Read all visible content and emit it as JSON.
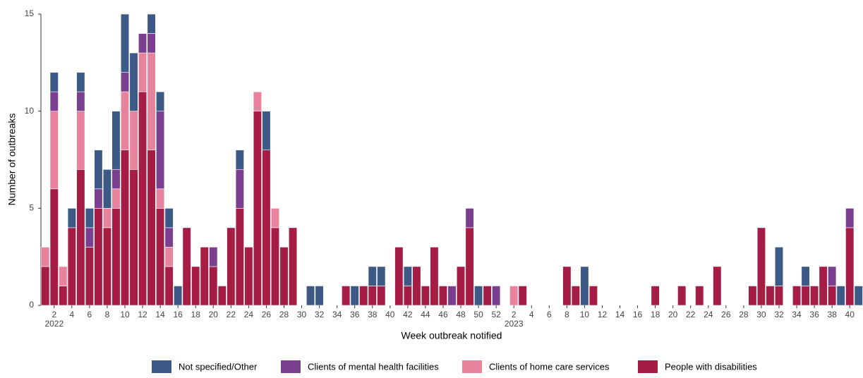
{
  "chart_data": {
    "type": "stacked_bar",
    "x_label": "Week outbreak notified",
    "y_label": "Number of outbreaks",
    "categories": [
      null,
      "2",
      null,
      "4",
      null,
      "6",
      null,
      "8",
      null,
      "10",
      null,
      "12",
      null,
      "14",
      null,
      "16",
      null,
      "18",
      null,
      "20",
      null,
      "22",
      null,
      "24",
      null,
      "26",
      null,
      "28",
      null,
      "30",
      null,
      "32",
      null,
      "34",
      null,
      "36",
      null,
      "38",
      null,
      "40",
      null,
      "42",
      null,
      "44",
      null,
      "46",
      null,
      "48",
      null,
      "50",
      null,
      "52",
      null,
      "2",
      null,
      "4",
      null,
      "6",
      null,
      "8",
      null,
      "10",
      null,
      "12",
      null,
      "14",
      null,
      "16",
      null,
      "18",
      null,
      "20",
      null,
      "22",
      null,
      "24",
      null,
      "26",
      null,
      "28",
      null,
      "30",
      null,
      "32",
      null,
      "34",
      null,
      "36",
      null,
      "38",
      null,
      "40",
      null
    ],
    "year_labels": [
      {
        "text": "2022",
        "category": 1
      },
      {
        "text": "2023",
        "category": 53
      }
    ],
    "series": [
      {
        "name": "Not specified/Other",
        "color": "#3d5a87",
        "values": [
          0,
          1,
          0,
          1,
          1,
          1,
          2,
          2,
          3,
          3,
          3,
          0,
          1,
          1,
          1,
          1,
          0,
          0,
          0,
          0,
          0,
          0,
          1,
          0,
          0,
          2,
          0,
          0,
          0,
          0,
          1,
          1,
          0,
          0,
          0,
          1,
          0,
          1,
          1,
          0,
          0,
          1,
          0,
          0,
          0,
          0,
          0,
          0,
          0,
          1,
          0,
          0,
          0,
          0,
          0,
          0,
          0,
          0,
          0,
          0,
          0,
          2,
          0,
          0,
          0,
          0,
          0,
          0,
          0,
          0,
          0,
          0,
          0,
          0,
          0,
          0,
          0,
          0,
          0,
          0,
          0,
          0,
          0,
          2,
          0,
          0,
          1,
          0,
          0,
          0,
          1,
          0,
          1
        ]
      },
      {
        "name": "Clients of mental health facilities",
        "color": "#7b3f8f",
        "values": [
          0,
          1,
          0,
          0,
          1,
          1,
          1,
          0,
          1,
          1,
          0,
          1,
          1,
          4,
          1,
          0,
          0,
          0,
          0,
          1,
          0,
          0,
          2,
          0,
          0,
          0,
          0,
          0,
          0,
          0,
          0,
          0,
          0,
          0,
          0,
          0,
          0,
          0,
          0,
          0,
          0,
          0,
          0,
          0,
          0,
          0,
          1,
          0,
          1,
          0,
          0,
          1,
          0,
          0,
          0,
          0,
          0,
          0,
          0,
          0,
          0,
          0,
          0,
          0,
          0,
          0,
          0,
          0,
          0,
          0,
          0,
          0,
          0,
          0,
          0,
          0,
          0,
          0,
          0,
          0,
          0,
          0,
          0,
          0,
          0,
          0,
          0,
          0,
          0,
          1,
          0,
          1,
          0
        ]
      },
      {
        "name": "Clients of home care services",
        "color": "#e8839e",
        "values": [
          1,
          4,
          1,
          0,
          3,
          0,
          0,
          1,
          1,
          3,
          3,
          2,
          5,
          1,
          1,
          0,
          0,
          0,
          0,
          0,
          0,
          0,
          0,
          0,
          1,
          0,
          1,
          0,
          0,
          0,
          0,
          0,
          0,
          0,
          0,
          0,
          0,
          0,
          0,
          0,
          0,
          0,
          0,
          0,
          0,
          0,
          0,
          0,
          0,
          0,
          0,
          0,
          0,
          1,
          0,
          0,
          0,
          0,
          0,
          0,
          0,
          0,
          0,
          0,
          0,
          0,
          0,
          0,
          0,
          0,
          0,
          0,
          0,
          0,
          0,
          0,
          0,
          0,
          0,
          0,
          0,
          0,
          0,
          0,
          0,
          0,
          0,
          0,
          0,
          0,
          0,
          0,
          0
        ]
      },
      {
        "name": "People with disabilities",
        "color": "#a51c45",
        "values": [
          2,
          6,
          1,
          4,
          7,
          3,
          5,
          4,
          5,
          8,
          7,
          11,
          8,
          5,
          2,
          0,
          4,
          2,
          3,
          2,
          1,
          4,
          5,
          3,
          10,
          8,
          4,
          3,
          4,
          0,
          0,
          0,
          0,
          0,
          1,
          0,
          1,
          1,
          1,
          0,
          3,
          1,
          2,
          1,
          3,
          1,
          0,
          2,
          4,
          0,
          1,
          0,
          0,
          0,
          1,
          0,
          0,
          0,
          0,
          2,
          1,
          0,
          1,
          0,
          0,
          0,
          0,
          0,
          0,
          1,
          0,
          0,
          1,
          0,
          1,
          0,
          2,
          0,
          0,
          0,
          1,
          4,
          1,
          1,
          0,
          1,
          1,
          1,
          2,
          1,
          0,
          4,
          0
        ]
      }
    ],
    "ylim": [
      0,
      15
    ],
    "yticks": [
      0,
      5,
      10,
      15
    ],
    "legend": "bottom"
  }
}
